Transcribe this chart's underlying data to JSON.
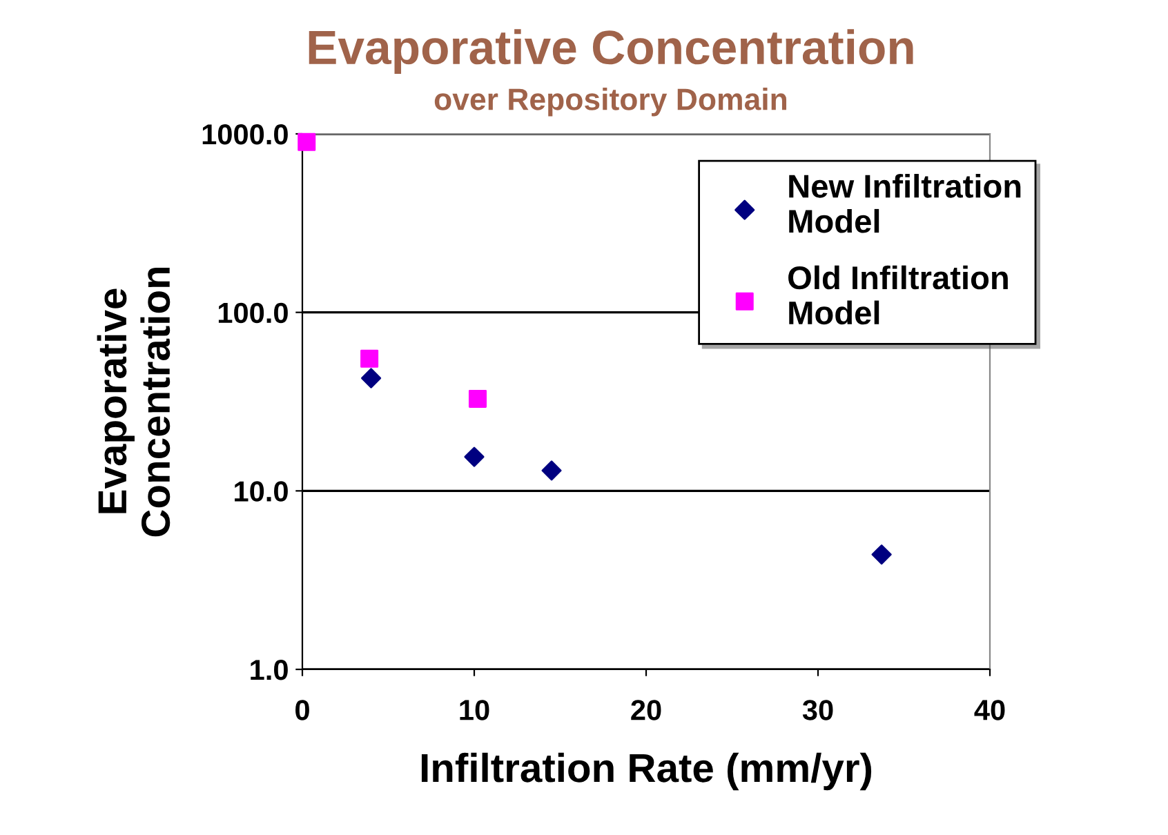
{
  "chart_data": {
    "type": "scatter",
    "title": "Evaporative Concentration",
    "subtitle": "over Repository Domain",
    "xlabel": "Infiltration Rate (mm/yr)",
    "ylabel": "Evaporative\nConcentration",
    "series": [
      {
        "name": "New Infiltration\nModel",
        "color": "#000080",
        "marker": "diamond",
        "x": [
          4.0,
          10.0,
          14.5,
          33.7
        ],
        "values": [
          42.8,
          15.5,
          13.0,
          4.4
        ]
      },
      {
        "name": "Old Infiltration\nModel",
        "color": "#ff00ff",
        "marker": "square",
        "x": [
          0.25,
          3.9,
          10.2
        ],
        "values": [
          900,
          55,
          32.8
        ]
      }
    ],
    "xlim": [
      0,
      40
    ],
    "xticks": [
      0,
      10,
      20,
      30,
      40
    ],
    "log": "y",
    "ylim": [
      1,
      1000
    ],
    "yticks": [
      {
        "value": 1,
        "label": "1.0"
      },
      {
        "value": 10,
        "label": "10.0"
      },
      {
        "value": 100,
        "label": "100.0"
      },
      {
        "value": 1000,
        "label": "1000.0"
      }
    ],
    "grid": "y",
    "legend": "top right"
  }
}
